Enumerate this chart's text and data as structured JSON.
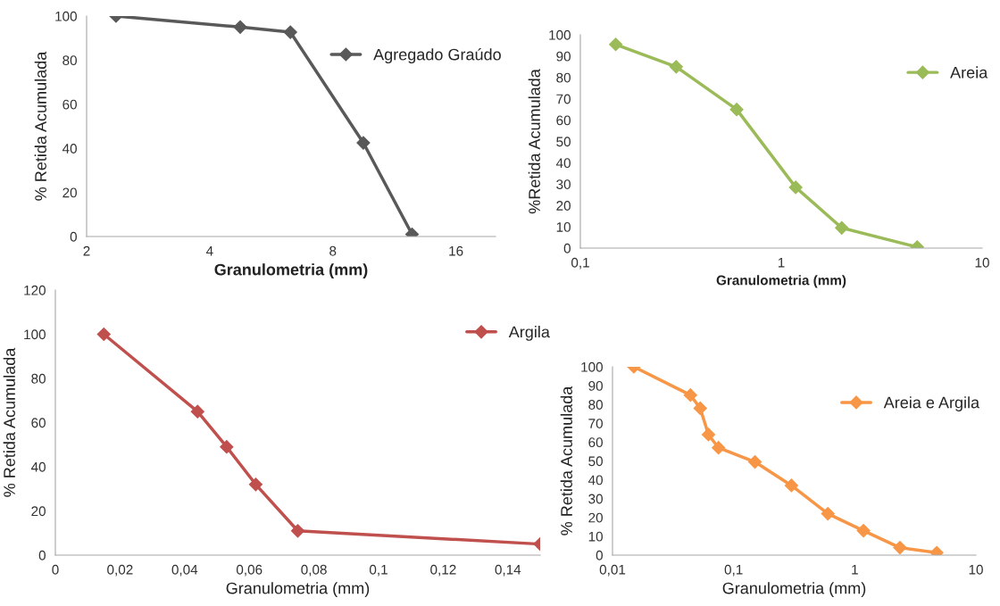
{
  "chart_data": [
    {
      "type": "line",
      "x": [
        2.36,
        4.75,
        6.3,
        9.5,
        12.5
      ],
      "series": [
        {
          "name": "Agregado Graúdo",
          "color": "#595959",
          "values": [
            100,
            95,
            92.7,
            42.5,
            1
          ]
        }
      ],
      "xlabel": "Granulometria (mm)",
      "ylabel": "% Retida Acumulada",
      "log": "x",
      "xlim": [
        2,
        20
      ],
      "xticks": [
        2,
        4,
        8,
        16
      ],
      "ylim": [
        0,
        100
      ],
      "yticks": [
        0,
        20,
        40,
        60,
        80,
        100
      ],
      "marker": "diamond",
      "legend": "top right",
      "grid": false
    },
    {
      "type": "line",
      "x": [
        0.15,
        0.3,
        0.6,
        1.18,
        2.0,
        4.75
      ],
      "series": [
        {
          "name": "Areia",
          "color": "#9bbb59",
          "values": [
            95.5,
            85,
            65,
            28.5,
            9.5,
            0.5
          ]
        }
      ],
      "xlabel": "Granulometria (mm)",
      "ylabel": "%Retida Acumulada",
      "log": "x",
      "xlim": [
        0.1,
        10
      ],
      "xticks": [
        {
          "value": 0.1,
          "label": "0,1"
        },
        1,
        10
      ],
      "ylim": [
        0,
        100
      ],
      "yticks": [
        0,
        10,
        20,
        30,
        40,
        50,
        60,
        70,
        80,
        90,
        100
      ],
      "marker": "diamond",
      "legend": "top right",
      "grid": false
    },
    {
      "type": "line",
      "x": [
        0.015,
        0.044,
        0.053,
        0.062,
        0.075,
        0.15
      ],
      "series": [
        {
          "name": "Argila",
          "color": "#c0504d",
          "values": [
            100,
            65,
            49,
            32,
            11,
            5
          ]
        }
      ],
      "xlabel": "Granulometria (mm)",
      "ylabel": "% Retida Acumulada",
      "xlim": [
        0,
        0.15
      ],
      "xticks": [
        0,
        {
          "value": 0.02,
          "label": "0,02"
        },
        {
          "value": 0.04,
          "label": "0,04"
        },
        {
          "value": 0.06,
          "label": "0,06"
        },
        {
          "value": 0.08,
          "label": "0,08"
        },
        {
          "value": 0.1,
          "label": "0,1"
        },
        {
          "value": 0.12,
          "label": "0,12"
        },
        {
          "value": 0.14,
          "label": "0,14"
        }
      ],
      "ylim": [
        0,
        120
      ],
      "yticks": [
        0,
        20,
        40,
        60,
        80,
        100,
        120
      ],
      "marker": "diamond",
      "legend": "top right",
      "grid": false
    },
    {
      "type": "line",
      "x": [
        0.015,
        0.044,
        0.053,
        0.062,
        0.075,
        0.15,
        0.3,
        0.6,
        1.18,
        2.36,
        4.75
      ],
      "series": [
        {
          "name": "Areia e Argila",
          "color": "#f79646",
          "values": [
            100,
            85,
            78,
            64,
            57,
            49.5,
            37,
            22,
            13,
            4,
            1.3
          ]
        }
      ],
      "xlabel": "Granulometria (mm)",
      "ylabel": "% Retida Acumulada",
      "log": "x",
      "xlim": [
        0.01,
        10
      ],
      "xticks": [
        {
          "value": 0.01,
          "label": "0,01"
        },
        {
          "value": 0.1,
          "label": "0,1"
        },
        1,
        10
      ],
      "ylim": [
        0,
        100
      ],
      "yticks": [
        0,
        10,
        20,
        30,
        40,
        50,
        60,
        70,
        80,
        90,
        100
      ],
      "marker": "diamond",
      "legend": "top right",
      "grid": false
    }
  ]
}
